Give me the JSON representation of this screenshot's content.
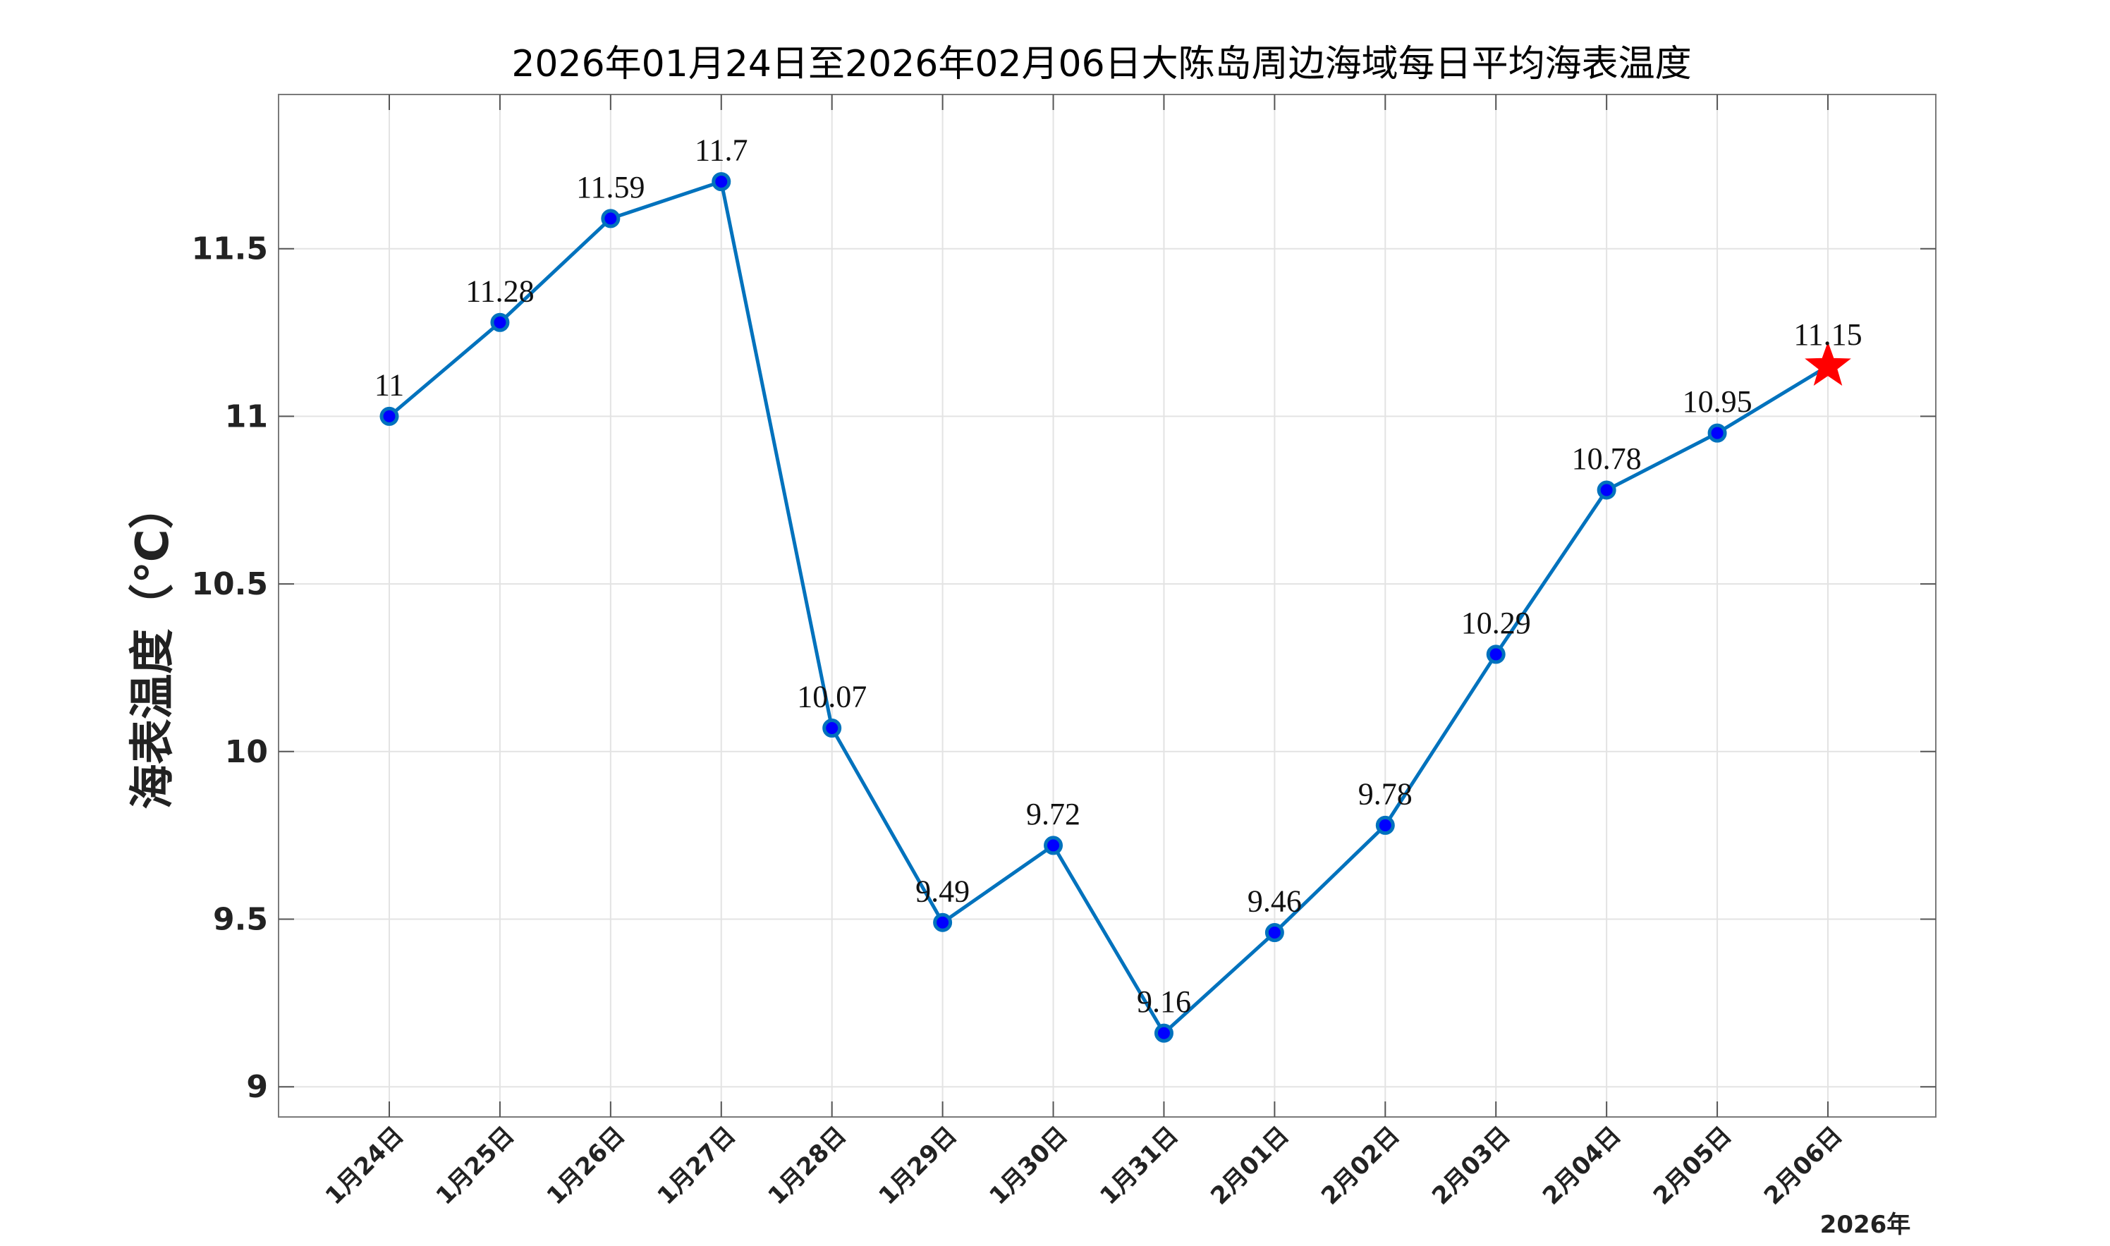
{
  "chart_data": {
    "type": "line",
    "title": "2026年01月24日至2026年02月06日大陈岛周边海域每日平均海表温度",
    "xlabel": "",
    "ylabel": "海表温度（℃）",
    "year_label": "2026年",
    "categories": [
      "1月24日",
      "1月25日",
      "1月26日",
      "1月27日",
      "1月28日",
      "1月29日",
      "1月30日",
      "1月31日",
      "2月01日",
      "2月02日",
      "2月03日",
      "2月04日",
      "2月05日",
      "2月06日"
    ],
    "series": [
      {
        "values": [
          11,
          11.28,
          11.59,
          11.7,
          10.07,
          9.49,
          9.72,
          9.16,
          9.46,
          9.78,
          10.29,
          10.78,
          10.95,
          11.15
        ],
        "labels": [
          "11",
          "11.28",
          "11.59",
          "11.7",
          "10.07",
          "9.49",
          "9.72",
          "9.16",
          "9.46",
          "9.78",
          "10.29",
          "10.78",
          "10.95",
          "11.15"
        ]
      }
    ],
    "ylim": [
      8.91,
      11.96
    ],
    "yticks": [
      9,
      9.5,
      10,
      10.5,
      11,
      11.5
    ],
    "ytick_labels": [
      "9",
      "9.5",
      "10",
      "10.5",
      "11",
      "11.5"
    ],
    "grid": true,
    "legend": "none",
    "line_color": "#0072bd",
    "marker_color": "#0000ff",
    "highlight_marker": "star",
    "highlight_color": "#ff0000"
  }
}
